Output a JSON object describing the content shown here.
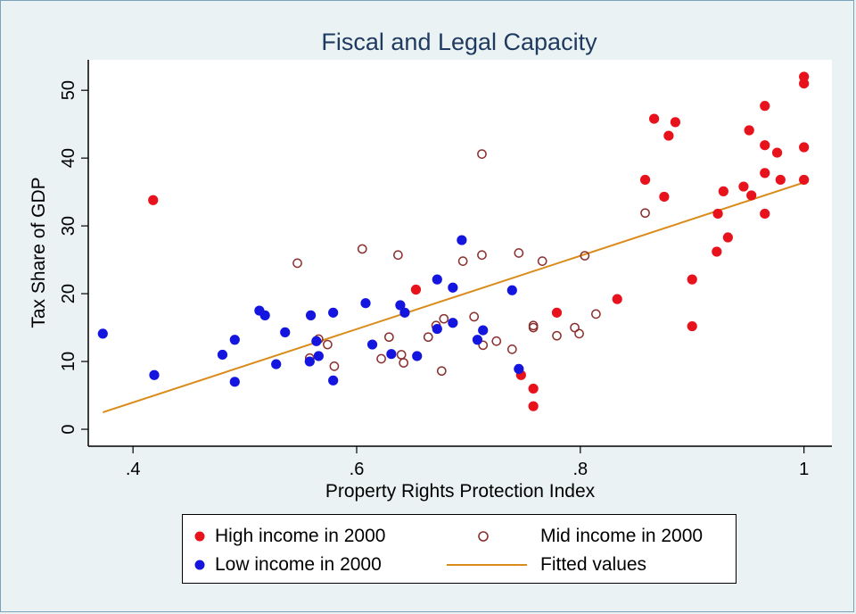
{
  "colors": {
    "high": "#e8121c",
    "mid": "#8b2f2f",
    "low": "#1515e0",
    "fit": "#d98c1a",
    "title": "#1e3a5f"
  },
  "chart_data": {
    "type": "scatter",
    "title": "Fiscal and Legal Capacity",
    "xlabel": "Property Rights Protection Index",
    "ylabel": "Tax Share of GDP",
    "xlim": [
      0.36,
      1.025
    ],
    "ylim": [
      -2.5,
      54.5
    ],
    "xticks": [
      0.4,
      0.6,
      0.8,
      1.0
    ],
    "xtick_labels": [
      ".4",
      ".6",
      ".8",
      "1"
    ],
    "yticks": [
      0,
      10,
      20,
      30,
      40,
      50
    ],
    "ytick_labels": [
      "0",
      "10",
      "20",
      "30",
      "40",
      "50"
    ],
    "grid": false,
    "legend_position": "bottom",
    "series": [
      {
        "name": "High income in 2000",
        "marker": "filled-circle",
        "points": [
          [
            0.418,
            33.8
          ],
          [
            0.653,
            20.6
          ],
          [
            0.747,
            8.0
          ],
          [
            0.758,
            6.0
          ],
          [
            0.758,
            3.4
          ],
          [
            0.779,
            17.2
          ],
          [
            0.833,
            19.2
          ],
          [
            0.858,
            36.8
          ],
          [
            0.866,
            45.8
          ],
          [
            0.875,
            34.3
          ],
          [
            0.879,
            43.3
          ],
          [
            0.885,
            45.3
          ],
          [
            0.9,
            22.1
          ],
          [
            0.9,
            15.2
          ],
          [
            0.922,
            26.2
          ],
          [
            0.923,
            31.8
          ],
          [
            0.928,
            35.1
          ],
          [
            0.932,
            28.3
          ],
          [
            0.946,
            35.8
          ],
          [
            0.951,
            44.1
          ],
          [
            0.953,
            34.5
          ],
          [
            0.965,
            47.7
          ],
          [
            0.965,
            41.9
          ],
          [
            0.965,
            37.8
          ],
          [
            0.965,
            31.8
          ],
          [
            0.976,
            40.8
          ],
          [
            0.979,
            36.8
          ],
          [
            1.0,
            52.0
          ],
          [
            1.0,
            51.0
          ],
          [
            1.0,
            41.6
          ],
          [
            1.0,
            36.8
          ]
        ]
      },
      {
        "name": "Mid income in 2000",
        "marker": "hollow-circle",
        "points": [
          [
            0.547,
            24.5
          ],
          [
            0.558,
            10.5
          ],
          [
            0.566,
            13.3
          ],
          [
            0.574,
            12.5
          ],
          [
            0.58,
            9.3
          ],
          [
            0.605,
            26.6
          ],
          [
            0.622,
            10.4
          ],
          [
            0.629,
            13.6
          ],
          [
            0.637,
            25.7
          ],
          [
            0.64,
            11.0
          ],
          [
            0.642,
            9.8
          ],
          [
            0.664,
            13.6
          ],
          [
            0.671,
            15.3
          ],
          [
            0.676,
            8.6
          ],
          [
            0.678,
            16.3
          ],
          [
            0.695,
            24.8
          ],
          [
            0.705,
            16.6
          ],
          [
            0.712,
            40.6
          ],
          [
            0.712,
            25.7
          ],
          [
            0.713,
            12.4
          ],
          [
            0.725,
            13.0
          ],
          [
            0.739,
            11.8
          ],
          [
            0.745,
            26.0
          ],
          [
            0.758,
            15.3
          ],
          [
            0.758,
            15.0
          ],
          [
            0.766,
            24.8
          ],
          [
            0.779,
            13.8
          ],
          [
            0.795,
            15.0
          ],
          [
            0.799,
            14.1
          ],
          [
            0.804,
            25.6
          ],
          [
            0.814,
            17.0
          ],
          [
            0.858,
            31.9
          ]
        ]
      },
      {
        "name": "Low income in 2000",
        "marker": "filled-circle",
        "points": [
          [
            0.373,
            14.1
          ],
          [
            0.419,
            8.0
          ],
          [
            0.48,
            11.0
          ],
          [
            0.491,
            13.2
          ],
          [
            0.491,
            7.0
          ],
          [
            0.513,
            17.5
          ],
          [
            0.518,
            16.8
          ],
          [
            0.528,
            9.6
          ],
          [
            0.536,
            14.3
          ],
          [
            0.558,
            10.0
          ],
          [
            0.559,
            16.8
          ],
          [
            0.564,
            13.0
          ],
          [
            0.566,
            10.8
          ],
          [
            0.579,
            17.2
          ],
          [
            0.579,
            7.2
          ],
          [
            0.608,
            18.6
          ],
          [
            0.614,
            12.5
          ],
          [
            0.631,
            11.1
          ],
          [
            0.639,
            18.3
          ],
          [
            0.643,
            17.2
          ],
          [
            0.654,
            10.8
          ],
          [
            0.672,
            22.1
          ],
          [
            0.672,
            14.8
          ],
          [
            0.686,
            20.9
          ],
          [
            0.686,
            15.7
          ],
          [
            0.694,
            27.9
          ],
          [
            0.708,
            13.2
          ],
          [
            0.713,
            14.6
          ],
          [
            0.739,
            20.5
          ],
          [
            0.745,
            8.9
          ]
        ]
      }
    ],
    "fitted_line": {
      "name": "Fitted values",
      "x": [
        0.373,
        1.0
      ],
      "y": [
        2.5,
        36.4
      ]
    }
  }
}
